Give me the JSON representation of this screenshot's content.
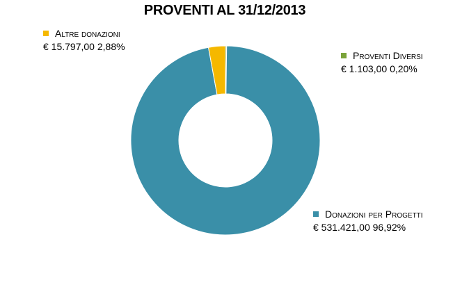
{
  "chart_data": {
    "type": "pie",
    "title": "PROVENTI AL 31/12/2013",
    "slices": [
      {
        "name": "Donazioni per Progetti",
        "value": 531421.0,
        "amount": "€ 531.421,00",
        "percent": "96,92%",
        "color": "#3a8fa8"
      },
      {
        "name": "Altre donazioni",
        "value": 15797.0,
        "amount": "€ 15.797,00",
        "percent": "2,88%",
        "color": "#f5b800"
      },
      {
        "name": "Proventi Diversi",
        "value": 1103.0,
        "amount": "€ 1.103,00",
        "percent": "0,20%",
        "color": "#7aa33a"
      }
    ]
  }
}
